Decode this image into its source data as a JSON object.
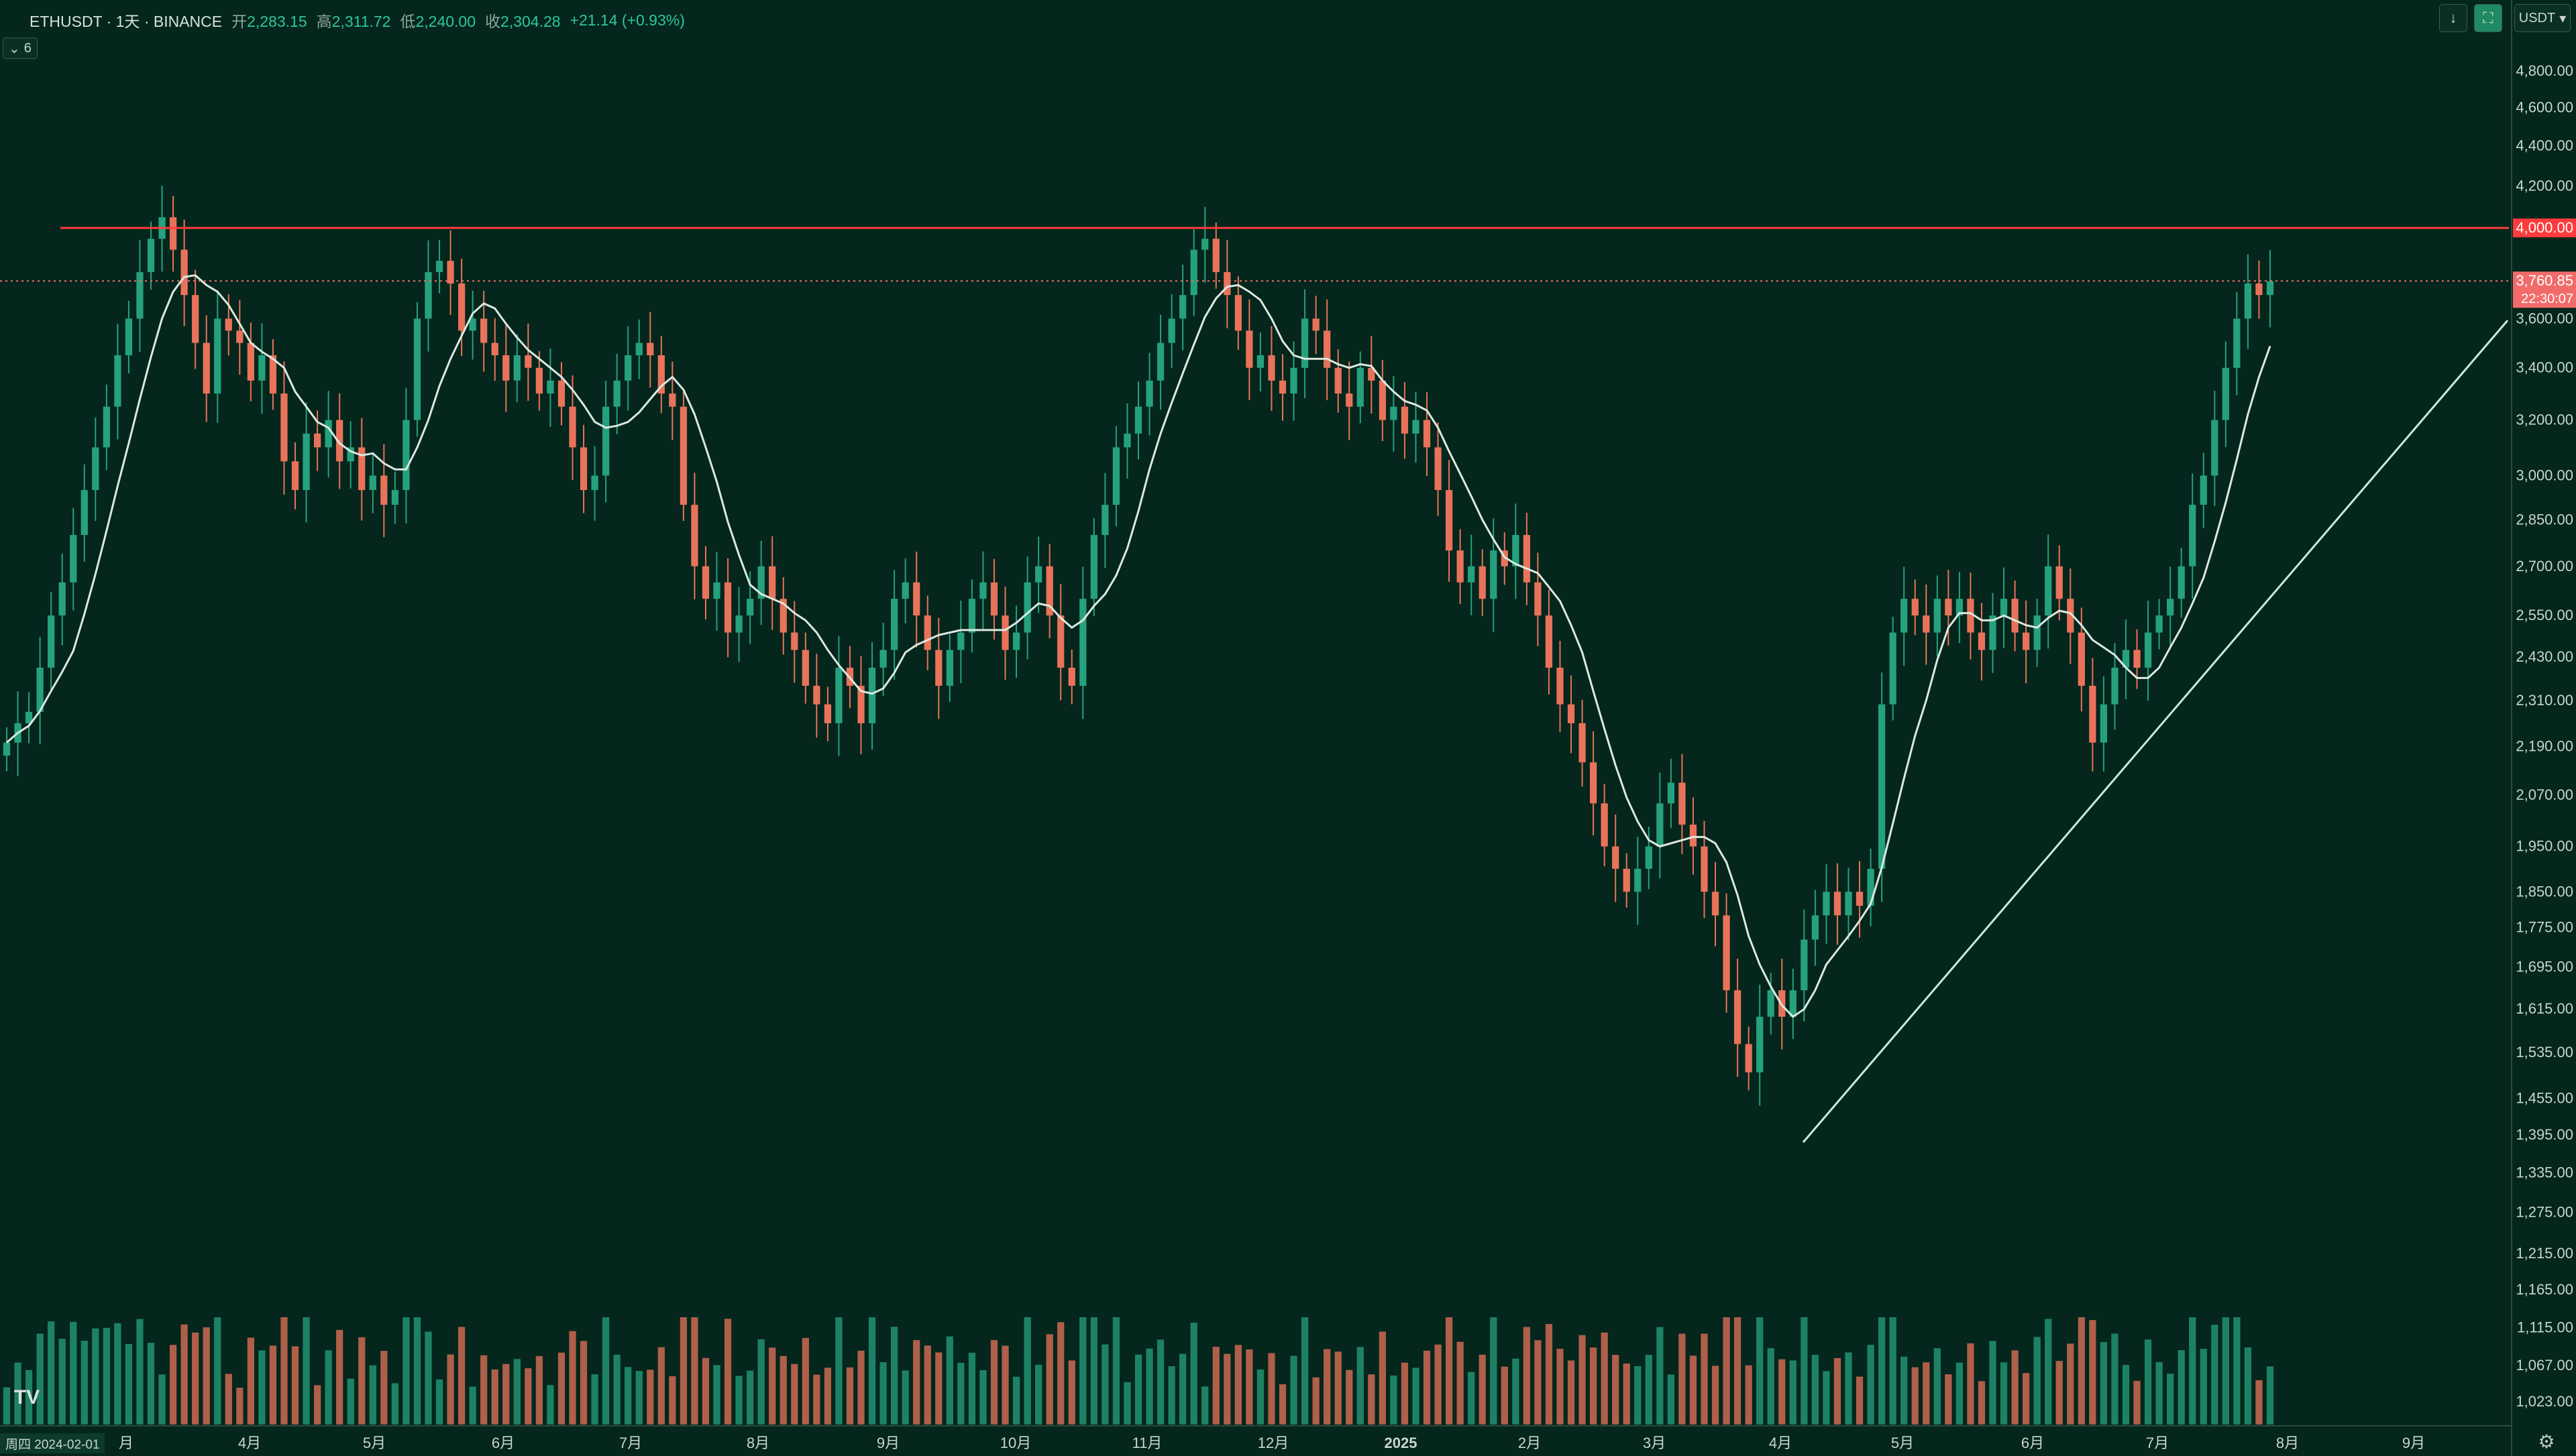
{
  "header": {
    "symbol": "ETHUSDT · 1天 · BINANCE",
    "open_label": "开",
    "open": "2,283.15",
    "high_label": "高",
    "high": "2,311.72",
    "low_label": "低",
    "low": "2,240.00",
    "close_label": "收",
    "close": "2,304.28",
    "change": "+21.14 (+0.93%)",
    "indicator_count": "6"
  },
  "toolbar": {
    "currency": "USDT",
    "down_icon": "arrow-down-icon",
    "fullscreen_icon": "expand-icon"
  },
  "footer": {
    "goto_label": "周四 2024-02-01",
    "logo_text": "TV",
    "settings_icon": "gear-icon"
  },
  "colors": {
    "background": "#04261c",
    "up": "#26a17e",
    "down": "#e8735a",
    "ma": "#dce8e0",
    "resistance": "#ff3b3b",
    "trendline": "#c8ecd6",
    "price_tag": "#f26b6b"
  },
  "chart_data": {
    "type": "candlestick",
    "symbol": "ETHUSDT",
    "interval": "1天",
    "exchange": "BINANCE",
    "y_scale": "log",
    "ylim": [
      1000,
      5000
    ],
    "price_ticks": [
      "4,800.00",
      "4,600.00",
      "4,400.00",
      "4,200.00",
      "4,000.00",
      "3,600.00",
      "3,400.00",
      "3,200.00",
      "3,000.00",
      "2,850.00",
      "2,700.00",
      "2,550.00",
      "2,430.00",
      "2,310.00",
      "2,190.00",
      "2,070.00",
      "1,950.00",
      "1,850.00",
      "1,775.00",
      "1,695.00",
      "1,615.00",
      "1,535.00",
      "1,455.00",
      "1,395.00",
      "1,335.00",
      "1,275.00",
      "1,215.00",
      "1,165.00",
      "1,115.00",
      "1,067.00",
      "1,023.00"
    ],
    "x_labels": [
      "月",
      "4月",
      "5月",
      "6月",
      "7月",
      "8月",
      "9月",
      "10月",
      "11月",
      "12月",
      "2025",
      "2月",
      "3月",
      "4月",
      "5月",
      "6月",
      "7月",
      "8月",
      "9月"
    ],
    "current_price_tag": "3,760.85",
    "countdown": "22:30:07",
    "resistance_label": "4,000.00",
    "resistance_price": 4000,
    "close_series": [
      2200,
      2250,
      2280,
      2400,
      2550,
      2650,
      2800,
      2950,
      3100,
      3250,
      3450,
      3600,
      3800,
      3950,
      4050,
      3900,
      3700,
      3500,
      3300,
      3600,
      3550,
      3500,
      3350,
      3450,
      3300,
      3050,
      2950,
      3150,
      3100,
      3200,
      3050,
      3100,
      2950,
      3000,
      2900,
      2950,
      3200,
      3600,
      3800,
      3850,
      3750,
      3550,
      3600,
      3500,
      3450,
      3350,
      3450,
      3400,
      3300,
      3350,
      3250,
      3100,
      2950,
      3000,
      3250,
      3350,
      3450,
      3500,
      3450,
      3300,
      3250,
      2900,
      2700,
      2600,
      2650,
      2500,
      2550,
      2600,
      2700,
      2600,
      2500,
      2450,
      2350,
      2300,
      2250,
      2400,
      2350,
      2250,
      2400,
      2450,
      2600,
      2650,
      2550,
      2450,
      2350,
      2450,
      2500,
      2600,
      2650,
      2550,
      2450,
      2500,
      2650,
      2700,
      2550,
      2400,
      2350,
      2600,
      2800,
      2900,
      3100,
      3150,
      3250,
      3350,
      3500,
      3600,
      3700,
      3900,
      3950,
      3800,
      3700,
      3550,
      3400,
      3450,
      3350,
      3300,
      3400,
      3600,
      3550,
      3400,
      3300,
      3250,
      3400,
      3350,
      3200,
      3250,
      3150,
      3200,
      3100,
      2950,
      2750,
      2650,
      2700,
      2600,
      2750,
      2700,
      2800,
      2650,
      2550,
      2400,
      2300,
      2250,
      2150,
      2050,
      1950,
      1900,
      1850,
      1900,
      1950,
      2050,
      2100,
      2000,
      1950,
      1850,
      1800,
      1650,
      1550,
      1500,
      1600,
      1650,
      1600,
      1650,
      1750,
      1800,
      1850,
      1800,
      1850,
      1820,
      1900,
      2300,
      2500,
      2600,
      2550,
      2500,
      2600,
      2550,
      2600,
      2500,
      2450,
      2550,
      2600,
      2500,
      2450,
      2550,
      2700,
      2600,
      2500,
      2350,
      2200,
      2300,
      2400,
      2450,
      2400,
      2500,
      2550,
      2600,
      2700,
      2900,
      3000,
      3200,
      3400,
      3600,
      3750,
      3700,
      3760
    ]
  }
}
